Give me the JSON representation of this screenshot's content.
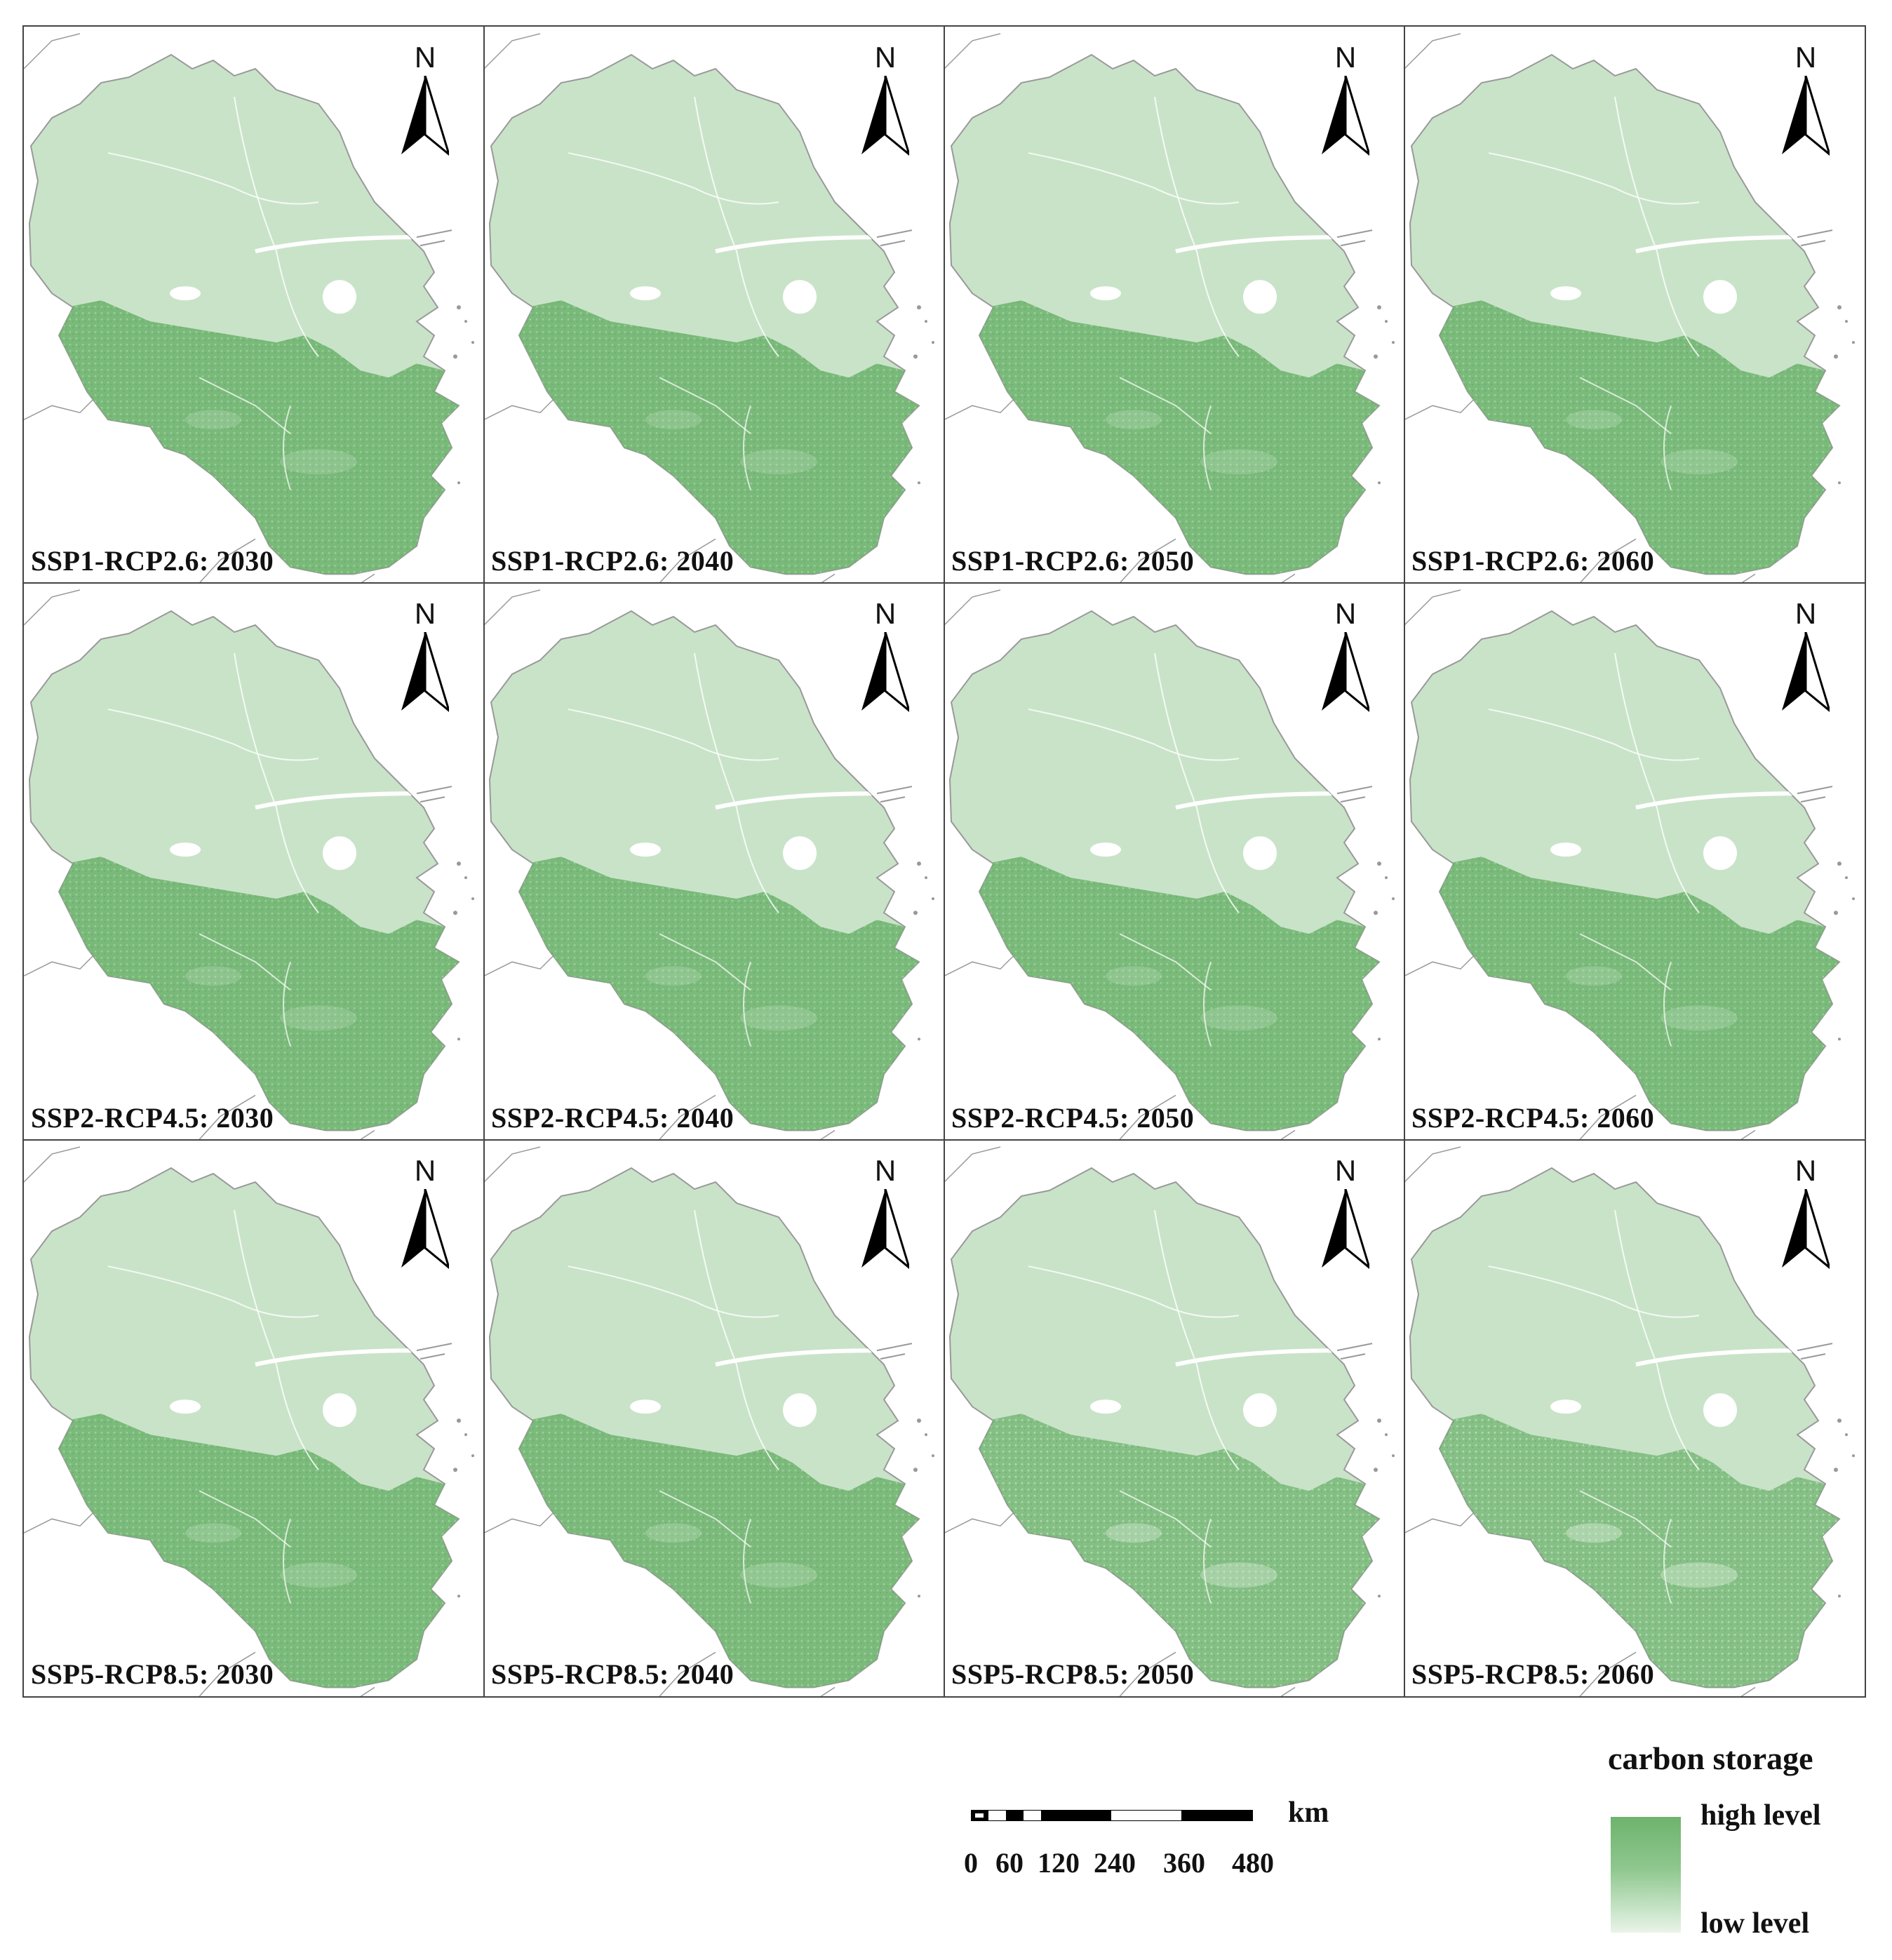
{
  "figure": {
    "rows": [
      "SSP1-RCP2.6",
      "SSP2-RCP4.5",
      "SSP5-RCP8.5"
    ],
    "columns": [
      "2030",
      "2040",
      "2050",
      "2060"
    ],
    "panels": [
      {
        "label": "SSP1-RCP2.6: 2030",
        "green_intensity": 0.8
      },
      {
        "label": "SSP1-RCP2.6: 2040",
        "green_intensity": 0.8
      },
      {
        "label": "SSP1-RCP2.6: 2050",
        "green_intensity": 0.79
      },
      {
        "label": "SSP1-RCP2.6: 2060",
        "green_intensity": 0.78
      },
      {
        "label": "SSP2-RCP4.5: 2030",
        "green_intensity": 0.8
      },
      {
        "label": "SSP2-RCP4.5: 2040",
        "green_intensity": 0.79
      },
      {
        "label": "SSP2-RCP4.5: 2050",
        "green_intensity": 0.79
      },
      {
        "label": "SSP2-RCP4.5: 2060",
        "green_intensity": 0.78
      },
      {
        "label": "SSP5-RCP8.5: 2030",
        "green_intensity": 0.78
      },
      {
        "label": "SSP5-RCP8.5: 2040",
        "green_intensity": 0.77
      },
      {
        "label": "SSP5-RCP8.5: 2050",
        "green_intensity": 0.62
      },
      {
        "label": "SSP5-RCP8.5: 2060",
        "green_intensity": 0.58
      }
    ],
    "north_arrow_label": "N"
  },
  "scale_bar": {
    "unit": "km",
    "ticks": [
      "0",
      "60",
      "120",
      "240",
      "360",
      "480"
    ]
  },
  "legend": {
    "title": "carbon storage",
    "high_label": "high level",
    "low_label": "low level",
    "high_color": "#6db36d",
    "low_color": "#e8f4e8"
  },
  "colors": {
    "light_green": "#c9e3c9",
    "dark_green": "#6db36d",
    "boundary": "#999999"
  }
}
